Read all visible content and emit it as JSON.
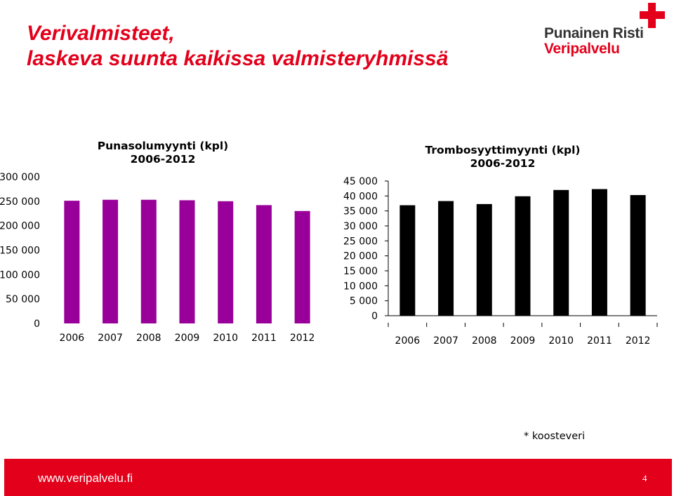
{
  "slide": {
    "title_line1": "Verivalmisteet,",
    "title_line2": "laskeva suunta kaikissa valmisteryhmissä",
    "accent_color": "#e3001b"
  },
  "logo": {
    "line1": "Punainen Risti",
    "line2": "Veripalvelu",
    "icon": "red-cross-icon"
  },
  "chart_data": [
    {
      "type": "bar",
      "title_line1": "Punasolumyynti (kpl)",
      "title_line2": "2006-2012",
      "categories": [
        "2006",
        "2007",
        "2008",
        "2009",
        "2010",
        "2011",
        "2012"
      ],
      "values": [
        251000,
        253000,
        253000,
        252000,
        250000,
        242000,
        230000
      ],
      "ylim": [
        0,
        300000
      ],
      "yticks": [
        0,
        50000,
        100000,
        150000,
        200000,
        250000,
        300000
      ],
      "ytick_labels": [
        "0",
        "50 000",
        "100 000",
        "150 000",
        "200 000",
        "250 000",
        "300 000"
      ],
      "bar_color": "#990099",
      "grid": false,
      "axis_lines": false
    },
    {
      "type": "bar",
      "title_line1": "Trombosyyttimyynti (kpl)",
      "title_line2": "2006-2012",
      "categories": [
        "2006",
        "2007",
        "2008",
        "2009",
        "2010",
        "2011",
        "2012"
      ],
      "values": [
        36900,
        38300,
        37300,
        39900,
        42000,
        42300,
        40300
      ],
      "ylim": [
        0,
        45000
      ],
      "yticks": [
        0,
        5000,
        10000,
        15000,
        20000,
        25000,
        30000,
        35000,
        40000,
        45000
      ],
      "ytick_labels": [
        "0",
        "5 000",
        "10 000",
        "15 000",
        "20 000",
        "25 000",
        "30 000",
        "35 000",
        "40 000",
        "45 000"
      ],
      "bar_color": "#000000",
      "grid": false,
      "axis_lines": true
    }
  ],
  "footnote": "* koosteveri",
  "footer": {
    "url": "www.veripalvelu.fi",
    "page_number": "4"
  }
}
